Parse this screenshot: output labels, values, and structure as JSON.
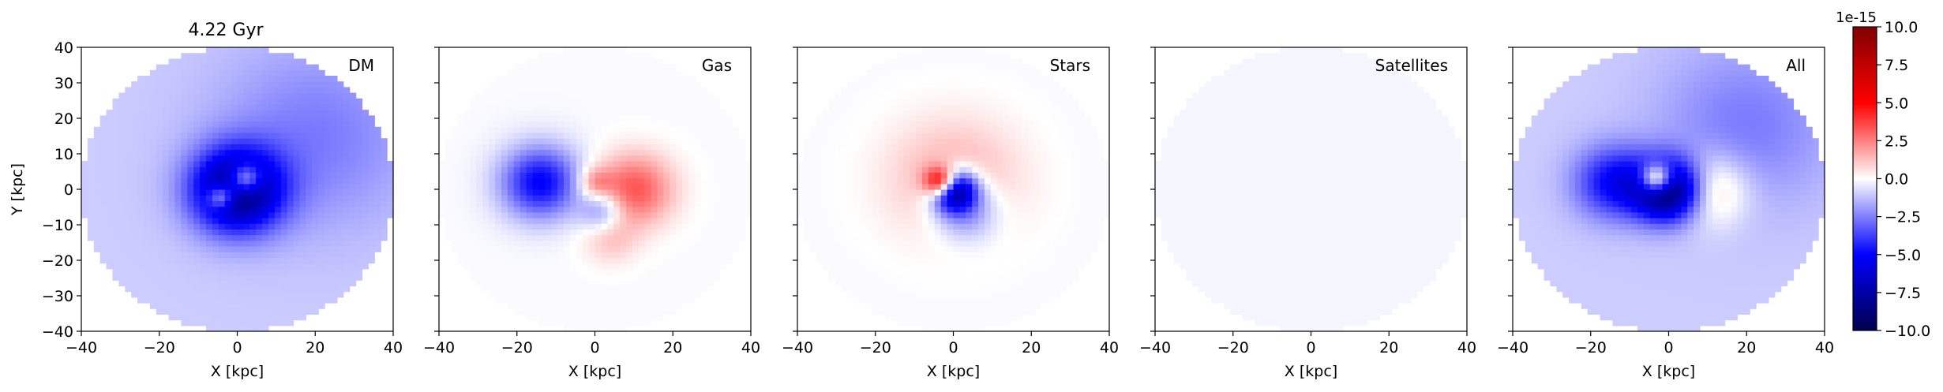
{
  "figure": {
    "title": "4.22 Gyr",
    "colorbar": {
      "multiplier_label": "1e-15",
      "range": [
        -10.0,
        10.0
      ],
      "ticks": [
        {
          "value": 10.0,
          "label": "10.0"
        },
        {
          "value": 7.5,
          "label": "7.5"
        },
        {
          "value": 5.0,
          "label": "5.0"
        },
        {
          "value": 2.5,
          "label": "2.5"
        },
        {
          "value": 0.0,
          "label": "0.0"
        },
        {
          "value": -2.5,
          "label": "−2.5"
        },
        {
          "value": -5.0,
          "label": "−5.0"
        },
        {
          "value": -7.5,
          "label": "−7.5"
        },
        {
          "value": -10.0,
          "label": "−10.0"
        }
      ],
      "colormap": "seismic"
    }
  },
  "chart_data": [
    {
      "type": "heatmap",
      "panel_label": "DM",
      "title": "4.22 Gyr",
      "xlabel": "X [kpc]",
      "ylabel": "Y [kpc]",
      "xlim": [
        -40,
        40
      ],
      "ylim": [
        -40,
        40
      ],
      "x_ticks": [
        -40,
        -20,
        0,
        20,
        40
      ],
      "y_ticks": [
        -40,
        -30,
        -20,
        -10,
        0,
        10,
        20,
        30,
        40
      ],
      "x_tick_labels": [
        "−40",
        "−20",
        "0",
        "20",
        "40"
      ],
      "y_tick_labels": [
        "−40",
        "−30",
        "−20",
        "−10",
        "0",
        "10",
        "20",
        "30",
        "40"
      ],
      "disk_radius": 40,
      "background_value": -1.0,
      "features": [
        {
          "x": 0,
          "y": 0,
          "r": 8,
          "value": -8.0
        },
        {
          "x": 2,
          "y": 3,
          "r": 3,
          "value": 6.0
        },
        {
          "x": -4,
          "y": -2,
          "r": 2.5,
          "value": 5.0
        },
        {
          "x": 20,
          "y": 15,
          "r": 18,
          "value": -1.6
        }
      ]
    },
    {
      "type": "heatmap",
      "panel_label": "Gas",
      "xlabel": "X [kpc]",
      "xlim": [
        -40,
        40
      ],
      "ylim": [
        -40,
        40
      ],
      "x_ticks": [
        -40,
        -20,
        0,
        20,
        40
      ],
      "x_tick_labels": [
        "−40",
        "−20",
        "0",
        "20",
        "40"
      ],
      "disk_radius": 40,
      "background_value": -0.1,
      "features": [
        {
          "x": -14,
          "y": 2,
          "r": 7,
          "value": -5.0
        },
        {
          "x": 10,
          "y": 0,
          "r": 7,
          "value": 3.5
        },
        {
          "x": 2,
          "y": -6,
          "r": 4,
          "value": -2.5
        },
        {
          "x": 4,
          "y": -14,
          "r": 5,
          "value": 1.2
        },
        {
          "x": 0,
          "y": 2,
          "r": 3,
          "value": 2.0
        }
      ]
    },
    {
      "type": "heatmap",
      "panel_label": "Stars",
      "xlabel": "X [kpc]",
      "xlim": [
        -40,
        40
      ],
      "ylim": [
        -40,
        40
      ],
      "x_ticks": [
        -40,
        -20,
        0,
        20,
        40
      ],
      "x_tick_labels": [
        "−40",
        "−20",
        "0",
        "20",
        "40"
      ],
      "disk_radius": 40,
      "background_value": -0.1,
      "features": [
        {
          "x": 0,
          "y": 0,
          "r": 4,
          "value": -9.0
        },
        {
          "x": -3,
          "y": 2,
          "r": 3,
          "value": 8.0
        },
        {
          "x": 0,
          "y": 3,
          "r": 12,
          "value": 1.8
        },
        {
          "x": 3,
          "y": -6,
          "r": 6,
          "value": -3.0
        }
      ]
    },
    {
      "type": "heatmap",
      "panel_label": "Satellites",
      "xlabel": "X [kpc]",
      "xlim": [
        -40,
        40
      ],
      "ylim": [
        -40,
        40
      ],
      "x_ticks": [
        -40,
        -20,
        0,
        20,
        40
      ],
      "x_tick_labels": [
        "−40",
        "−20",
        "0",
        "20",
        "40"
      ],
      "disk_radius": 40,
      "background_value": -0.2,
      "features": []
    },
    {
      "type": "heatmap",
      "panel_label": "All",
      "xlabel": "X [kpc]",
      "xlim": [
        -40,
        40
      ],
      "ylim": [
        -40,
        40
      ],
      "x_ticks": [
        -40,
        -20,
        0,
        20,
        40
      ],
      "x_tick_labels": [
        "−40",
        "−20",
        "0",
        "20",
        "40"
      ],
      "disk_radius": 40,
      "background_value": -1.0,
      "features": [
        {
          "x": 0,
          "y": 0,
          "r": 6,
          "value": -9.0
        },
        {
          "x": -3,
          "y": 3,
          "r": 3,
          "value": 8.0
        },
        {
          "x": -14,
          "y": 2,
          "r": 7,
          "value": -4.0
        },
        {
          "x": 10,
          "y": 0,
          "r": 7,
          "value": 3.0
        },
        {
          "x": 20,
          "y": 18,
          "r": 16,
          "value": -1.6
        }
      ]
    }
  ]
}
